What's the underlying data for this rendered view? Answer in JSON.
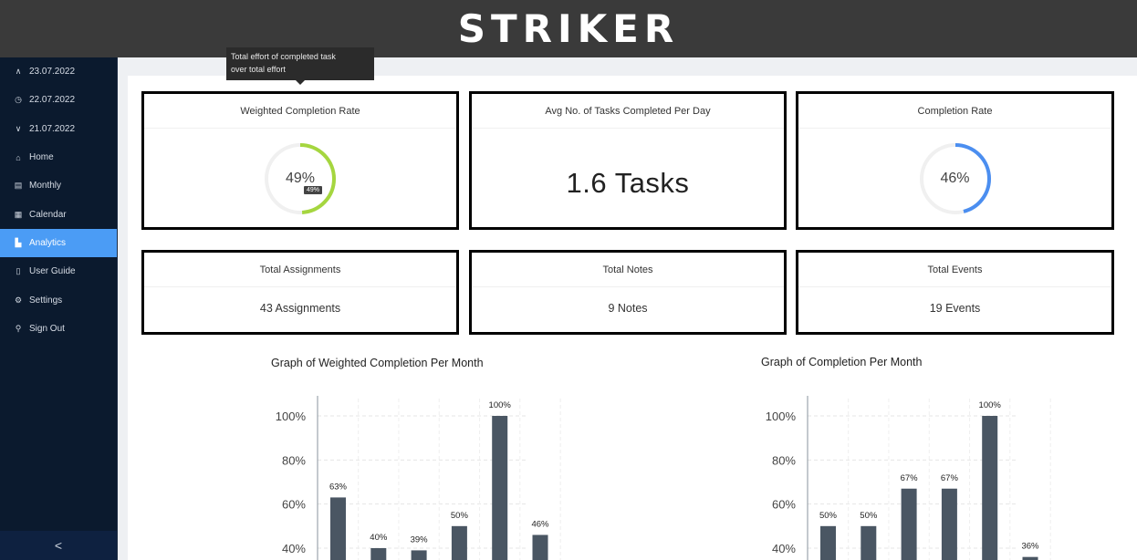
{
  "app": {
    "logo": "STRIKER"
  },
  "sidebar": {
    "items": [
      {
        "label": "23.07.2022",
        "icon": "chevron-up-icon",
        "glyph": "∧",
        "active": false
      },
      {
        "label": "22.07.2022",
        "icon": "clock-icon",
        "glyph": "◷",
        "active": false
      },
      {
        "label": "21.07.2022",
        "icon": "chevron-down-icon",
        "glyph": "∨",
        "active": false
      },
      {
        "label": "Home",
        "icon": "home-icon",
        "glyph": "⌂",
        "active": false
      },
      {
        "label": "Monthly",
        "icon": "document-icon",
        "glyph": "▤",
        "active": false
      },
      {
        "label": "Calendar",
        "icon": "calendar-icon",
        "glyph": "▦",
        "active": false
      },
      {
        "label": "Analytics",
        "icon": "chart-icon",
        "glyph": "▙",
        "active": true
      },
      {
        "label": "User Guide",
        "icon": "book-icon",
        "glyph": "▯",
        "active": false
      },
      {
        "label": "Settings",
        "icon": "gear-icon",
        "glyph": "⚙",
        "active": false
      },
      {
        "label": "Sign Out",
        "icon": "user-icon",
        "glyph": "⚲",
        "active": false
      }
    ],
    "collapse_glyph": "<"
  },
  "tooltip": {
    "text1": "Total effort of completed task",
    "text2": "over total effort"
  },
  "cards": {
    "weighted": {
      "title": "Weighted Completion Rate",
      "value": "49%",
      "badge": "49%",
      "fraction": 0.49,
      "color": "#a5d63f"
    },
    "avg": {
      "title": "Avg No. of Tasks Completed Per Day",
      "value": "1.6 Tasks"
    },
    "completion": {
      "title": "Completion Rate",
      "value": "46%",
      "fraction": 0.46,
      "color": "#4b8ef0"
    },
    "assignments": {
      "title": "Total Assignments",
      "value": "43 Assignments"
    },
    "notes": {
      "title": "Total Notes",
      "value": "9 Notes"
    },
    "events": {
      "title": "Total Events",
      "value": "19 Events"
    }
  },
  "chart_data": [
    {
      "type": "bar",
      "title": "Graph of Weighted Completion Per Month",
      "values": [
        63,
        40,
        39,
        50,
        100,
        46
      ],
      "data_labels": [
        "63%",
        "40%",
        "39%",
        "50%",
        "100%",
        "46%"
      ],
      "y_ticks": [
        "100%",
        "80%",
        "60%",
        "40%"
      ],
      "ylim": [
        0,
        100
      ],
      "bar_color": "#4a5663",
      "grid": true
    },
    {
      "type": "bar",
      "title": "Graph of Completion Per Month",
      "values": [
        50,
        50,
        67,
        67,
        100,
        36
      ],
      "data_labels": [
        "50%",
        "50%",
        "67%",
        "67%",
        "100%",
        "36%"
      ],
      "y_ticks": [
        "100%",
        "80%",
        "60%",
        "40%"
      ],
      "ylim": [
        0,
        100
      ],
      "bar_color": "#4a5663",
      "grid": true
    }
  ]
}
